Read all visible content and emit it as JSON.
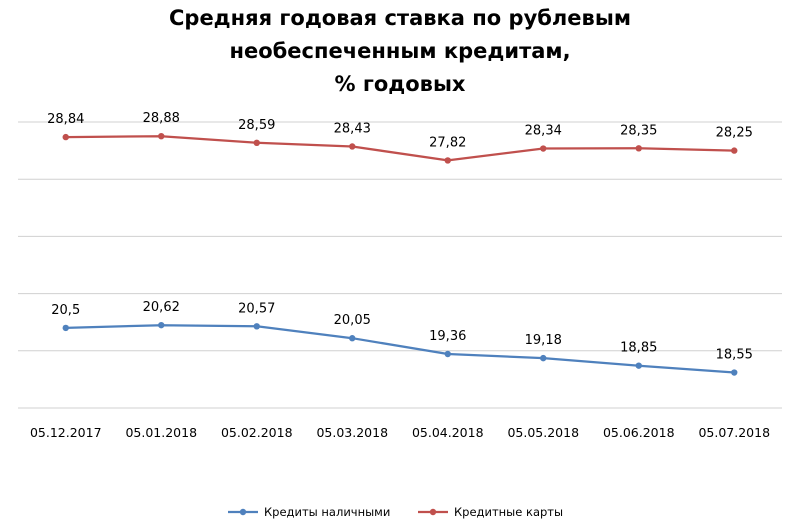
{
  "title_lines": [
    "Средняя годовая ставка по рублевым",
    "необеспеченным кредитам,",
    "% годовых"
  ],
  "chart_data": {
    "type": "line",
    "title": "Средняя годовая ставка по рублевым необеспеченным кредитам, % годовых",
    "categories": [
      "05.12.2017",
      "05.01.2018",
      "05.02.2018",
      "05.03.2018",
      "05.04.2018",
      "05.05.2018",
      "05.06.2018",
      "05.07.2018"
    ],
    "series": [
      {
        "name": "Кредиты наличными",
        "color": "#4F81BD",
        "values": [
          20.5,
          20.62,
          20.57,
          20.05,
          19.36,
          19.18,
          18.85,
          18.55
        ],
        "labels": [
          "20,5",
          "20,62",
          "20,57",
          "20,05",
          "19,36",
          "19,18",
          "18,85",
          "18,55"
        ]
      },
      {
        "name": "Кредитные карты",
        "color": "#C0504D",
        "values": [
          28.84,
          28.88,
          28.59,
          28.43,
          27.82,
          28.34,
          28.35,
          28.25
        ],
        "labels": [
          "28,84",
          "28,88",
          "28,59",
          "28,43",
          "27,82",
          "28,34",
          "28,35",
          "28,25"
        ]
      }
    ],
    "ylim": [
      17,
      29.5
    ],
    "y_axis_visible": false,
    "grid": true,
    "legend_position": "bottom"
  }
}
